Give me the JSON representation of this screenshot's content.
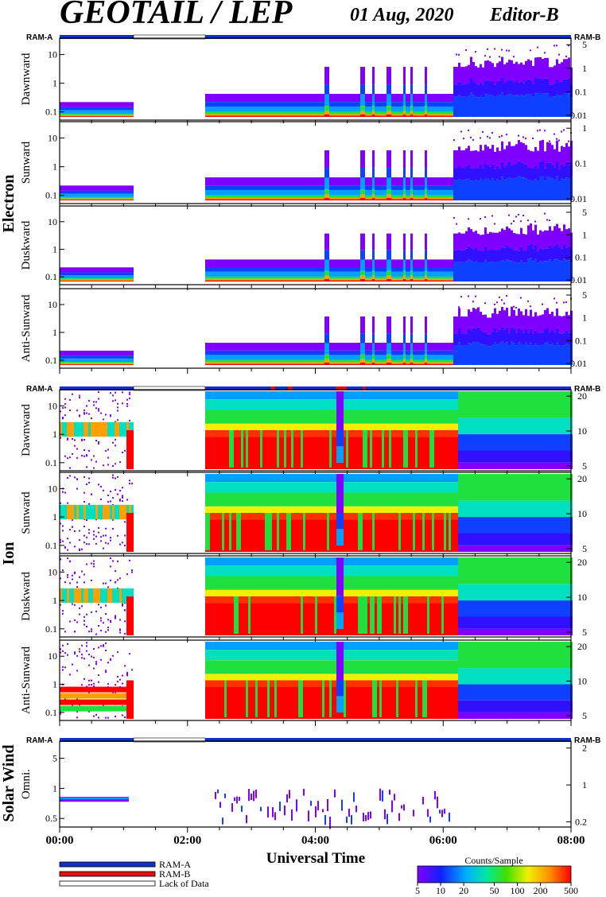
{
  "header": {
    "title": "GEOTAIL / LEP",
    "date": "01 Aug, 2020",
    "editor": "Editor-B"
  },
  "ram": {
    "a_label": "RAM-A",
    "b_label": "RAM-B"
  },
  "groups": {
    "electron": "Electron",
    "ion": "Ion",
    "solar_wind": "Solar Wind"
  },
  "legend": {
    "ram_a": "RAM-A",
    "ram_b": "RAM-B",
    "lack": "Lack of Data"
  },
  "colorbar": {
    "title": "Counts/Sample",
    "ticks": [
      "5",
      "10",
      "20",
      "50",
      "100",
      "200",
      "500"
    ]
  },
  "colors": {
    "ram_a": "#1030d0",
    "ram_b": "#e01010",
    "lack": "#ffffff"
  },
  "chart_data": {
    "type": "heatmap",
    "xlabel": "Universal Time",
    "x_ticks": [
      "00:00",
      "02:00",
      "04:00",
      "06:00",
      "08:00"
    ],
    "xlim": [
      "00:00",
      "08:00"
    ],
    "data_gap_ut": [
      "01:07",
      "02:17"
    ],
    "color_scale": {
      "label": "Counts/Sample",
      "min": 5,
      "max": 500,
      "log": true
    },
    "panels": [
      {
        "group": "Electron",
        "direction": "Dawnward",
        "left_ticks": [
          "10",
          "1",
          "0.1"
        ],
        "right_ticks": [
          "5",
          "1",
          "0.1",
          "0.01"
        ]
      },
      {
        "group": "Electron",
        "direction": "Sunward",
        "left_ticks": [
          "10",
          "1",
          "0.1"
        ],
        "right_ticks": [
          "1",
          "0.1",
          "0.01"
        ]
      },
      {
        "group": "Electron",
        "direction": "Duskward",
        "left_ticks": [
          "10",
          "1",
          "0.1"
        ],
        "right_ticks": [
          "5",
          "1",
          "0.1",
          "0.01"
        ]
      },
      {
        "group": "Electron",
        "direction": "Anti-Sunward",
        "left_ticks": [
          "10",
          "1",
          "0.1"
        ],
        "right_ticks": [
          "5",
          "1",
          "0.1",
          "0.01"
        ]
      },
      {
        "group": "Ion",
        "direction": "Dawnward",
        "left_ticks": [
          "10",
          "1",
          "0.1"
        ],
        "right_ticks": [
          "20",
          "10",
          "5"
        ]
      },
      {
        "group": "Ion",
        "direction": "Sunward",
        "left_ticks": [
          "10",
          "1",
          "0.1"
        ],
        "right_ticks": [
          "20",
          "10",
          "5"
        ]
      },
      {
        "group": "Ion",
        "direction": "Duskward",
        "left_ticks": [
          "10",
          "1",
          "0.1"
        ],
        "right_ticks": [
          "20",
          "10",
          "5"
        ]
      },
      {
        "group": "Ion",
        "direction": "Anti-Sunward",
        "left_ticks": [
          "10",
          "1",
          "0.1"
        ],
        "right_ticks": [
          "20",
          "10",
          "5"
        ]
      },
      {
        "group": "Solar Wind",
        "direction": "Omni.",
        "left_ticks": [
          "5",
          "1",
          "0.5"
        ],
        "right_ticks": [
          "2",
          "1",
          "0.2"
        ]
      }
    ]
  }
}
